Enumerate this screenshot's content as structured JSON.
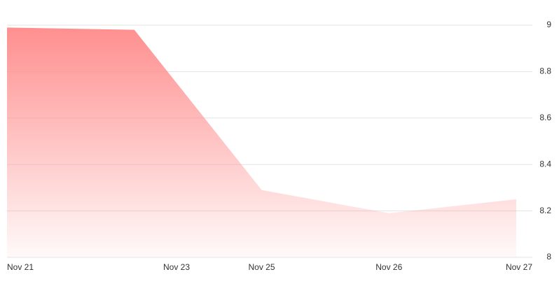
{
  "chart_data": {
    "type": "area",
    "categories": [
      "Nov 21",
      null,
      "Nov 25",
      "Nov 26",
      "Nov 27"
    ],
    "x_tick_labels": [
      "Nov 21",
      "Nov 23",
      "Nov 25",
      "Nov 26",
      "Nov 27"
    ],
    "values": [
      8.99,
      8.98,
      8.29,
      8.19,
      8.25
    ],
    "color": "#ff8f8f",
    "ylim": [
      8,
      9
    ],
    "yticks": [
      8,
      8.2,
      8.4,
      8.6,
      8.8,
      9
    ],
    "grid": true
  }
}
